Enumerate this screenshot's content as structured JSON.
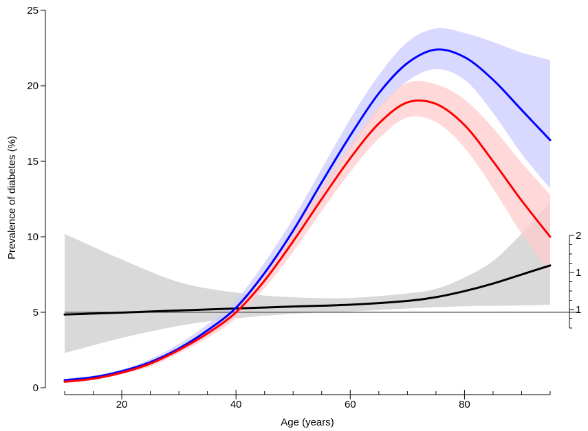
{
  "chart_data": {
    "type": "line",
    "xlabel": "Age (years)",
    "ylabel": "Prevalence of diabetes (%)",
    "xlim": [
      10,
      95
    ],
    "ylim": [
      0,
      25
    ],
    "x_ticks": [
      20,
      40,
      60,
      80
    ],
    "y_ticks": [
      0,
      5,
      10,
      15,
      20,
      25
    ],
    "reference_line_y": 5,
    "secondary_axis_tick_labels": [
      "2",
      "1",
      "1"
    ],
    "series": [
      {
        "color": "#0000ff",
        "band_color": "#ccccff",
        "points": [
          [
            10,
            0.5
          ],
          [
            15,
            0.7
          ],
          [
            20,
            1.1
          ],
          [
            25,
            1.7
          ],
          [
            30,
            2.6
          ],
          [
            35,
            3.8
          ],
          [
            40,
            5.3
          ],
          [
            45,
            7.6
          ],
          [
            50,
            10.4
          ],
          [
            55,
            13.6
          ],
          [
            60,
            16.7
          ],
          [
            65,
            19.5
          ],
          [
            70,
            21.5
          ],
          [
            75,
            22.4
          ],
          [
            80,
            21.9
          ],
          [
            85,
            20.4
          ],
          [
            90,
            18.4
          ],
          [
            95,
            16.4
          ]
        ],
        "lower": [
          [
            10,
            0.4
          ],
          [
            15,
            0.6
          ],
          [
            20,
            1.0
          ],
          [
            25,
            1.5
          ],
          [
            30,
            2.3
          ],
          [
            35,
            3.4
          ],
          [
            40,
            4.8
          ],
          [
            45,
            6.9
          ],
          [
            50,
            9.6
          ],
          [
            55,
            12.7
          ],
          [
            60,
            15.7
          ],
          [
            65,
            18.4
          ],
          [
            70,
            20.3
          ],
          [
            75,
            21.1
          ],
          [
            80,
            20.4
          ],
          [
            85,
            18.2
          ],
          [
            90,
            15.5
          ],
          [
            95,
            13.2
          ]
        ],
        "upper": [
          [
            10,
            0.6
          ],
          [
            15,
            0.8
          ],
          [
            20,
            1.2
          ],
          [
            25,
            1.9
          ],
          [
            30,
            2.9
          ],
          [
            35,
            4.2
          ],
          [
            40,
            5.8
          ],
          [
            45,
            8.3
          ],
          [
            50,
            11.2
          ],
          [
            55,
            14.5
          ],
          [
            60,
            17.8
          ],
          [
            65,
            20.7
          ],
          [
            70,
            22.9
          ],
          [
            75,
            23.8
          ],
          [
            80,
            23.5
          ],
          [
            85,
            22.9
          ],
          [
            90,
            22.2
          ],
          [
            95,
            21.7
          ]
        ]
      },
      {
        "color": "#ff0000",
        "band_color": "#ffcccc",
        "points": [
          [
            10,
            0.4
          ],
          [
            15,
            0.6
          ],
          [
            20,
            1.0
          ],
          [
            25,
            1.6
          ],
          [
            30,
            2.5
          ],
          [
            35,
            3.6
          ],
          [
            40,
            5.0
          ],
          [
            45,
            7.1
          ],
          [
            50,
            9.7
          ],
          [
            55,
            12.5
          ],
          [
            60,
            15.2
          ],
          [
            65,
            17.5
          ],
          [
            70,
            18.9
          ],
          [
            75,
            18.8
          ],
          [
            80,
            17.4
          ],
          [
            85,
            15.0
          ],
          [
            90,
            12.4
          ],
          [
            95,
            10.0
          ]
        ],
        "lower": [
          [
            10,
            0.3
          ],
          [
            15,
            0.5
          ],
          [
            20,
            0.9
          ],
          [
            25,
            1.4
          ],
          [
            30,
            2.3
          ],
          [
            35,
            3.3
          ],
          [
            40,
            4.6
          ],
          [
            45,
            6.6
          ],
          [
            50,
            9.0
          ],
          [
            55,
            11.7
          ],
          [
            60,
            14.3
          ],
          [
            65,
            16.5
          ],
          [
            70,
            17.9
          ],
          [
            75,
            17.6
          ],
          [
            80,
            15.9
          ],
          [
            85,
            13.2
          ],
          [
            90,
            10.2
          ],
          [
            95,
            7.6
          ]
        ],
        "upper": [
          [
            10,
            0.5
          ],
          [
            15,
            0.7
          ],
          [
            20,
            1.1
          ],
          [
            25,
            1.8
          ],
          [
            30,
            2.7
          ],
          [
            35,
            3.9
          ],
          [
            40,
            5.4
          ],
          [
            45,
            7.6
          ],
          [
            50,
            10.4
          ],
          [
            55,
            13.3
          ],
          [
            60,
            16.1
          ],
          [
            65,
            18.6
          ],
          [
            70,
            20.2
          ],
          [
            75,
            20.1
          ],
          [
            80,
            19.1
          ],
          [
            85,
            17.2
          ],
          [
            90,
            14.9
          ],
          [
            95,
            12.8
          ]
        ]
      },
      {
        "color": "#000000",
        "band_color": "#d9d9d9",
        "points": [
          [
            10,
            4.85
          ],
          [
            20,
            4.98
          ],
          [
            30,
            5.12
          ],
          [
            40,
            5.25
          ],
          [
            50,
            5.38
          ],
          [
            60,
            5.5
          ],
          [
            70,
            5.75
          ],
          [
            75,
            6.0
          ],
          [
            80,
            6.4
          ],
          [
            85,
            6.9
          ],
          [
            90,
            7.5
          ],
          [
            95,
            8.1
          ]
        ],
        "lower": [
          [
            10,
            2.3
          ],
          [
            20,
            3.3
          ],
          [
            30,
            4.1
          ],
          [
            40,
            4.6
          ],
          [
            50,
            4.9
          ],
          [
            60,
            5.05
          ],
          [
            70,
            5.25
          ],
          [
            80,
            5.4
          ],
          [
            90,
            5.45
          ],
          [
            95,
            5.5
          ]
        ],
        "upper": [
          [
            10,
            10.2
          ],
          [
            20,
            8.5
          ],
          [
            30,
            7.0
          ],
          [
            40,
            6.3
          ],
          [
            50,
            6.0
          ],
          [
            60,
            5.95
          ],
          [
            70,
            6.25
          ],
          [
            75,
            6.55
          ],
          [
            80,
            7.3
          ],
          [
            85,
            8.4
          ],
          [
            90,
            10.2
          ],
          [
            95,
            12.3
          ]
        ]
      }
    ]
  }
}
